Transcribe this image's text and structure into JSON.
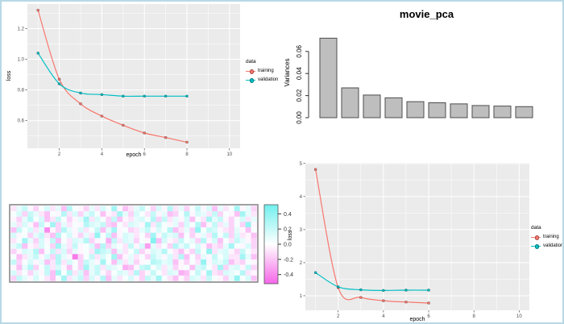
{
  "window": {
    "background": "#ffffff",
    "border_color": "#b7d9e6"
  },
  "colors": {
    "training": "#F8766D",
    "validation": "#00BFC4",
    "panel_bg": "#EBEBEB",
    "grid": "#FFFFFF",
    "tick": "#333333",
    "tick_text": "#4D4D4D",
    "bar_fill": "#BEBEBE",
    "bar_border": "#4D4D4D",
    "heat_positive": "#70F0EE",
    "heat_negative": "#F566E8",
    "heatmap_border": "#808080"
  },
  "legend": {
    "title": "data",
    "items": [
      {
        "label": "training",
        "color_key": "training"
      },
      {
        "label": "validation",
        "color_key": "validation"
      }
    ]
  },
  "chart_data": [
    {
      "id": "loss_top_left",
      "type": "line",
      "xlabel": "epoch",
      "ylabel": "loss",
      "x": [
        1,
        2,
        3,
        4,
        5,
        6,
        7,
        8
      ],
      "series": [
        {
          "name": "training",
          "color_key": "training",
          "values": [
            1.32,
            0.87,
            0.71,
            0.63,
            0.57,
            0.52,
            0.49,
            0.46
          ]
        },
        {
          "name": "validation",
          "color_key": "validation",
          "values": [
            1.04,
            0.84,
            0.78,
            0.77,
            0.76,
            0.76,
            0.76,
            0.76
          ]
        }
      ],
      "xticks": [
        2,
        4,
        6,
        8,
        10
      ],
      "xtick_labels": [
        "2",
        "4",
        "6",
        "8",
        "10"
      ],
      "yticks": [
        0.6,
        0.8,
        1.0,
        1.2
      ],
      "ytick_labels": [
        "0.6",
        "0.8",
        "1.0",
        "1.2"
      ],
      "xlim": [
        0.5,
        10.5
      ],
      "ylim": [
        0.42,
        1.36
      ],
      "grid": true,
      "legend_position": "right"
    },
    {
      "id": "movie_pca",
      "type": "bar",
      "title": "movie_pca",
      "ylabel": "Variances",
      "xlabel": "",
      "values": [
        0.072,
        0.027,
        0.0205,
        0.018,
        0.0145,
        0.0135,
        0.0125,
        0.011,
        0.0105,
        0.01
      ],
      "yticks": [
        0,
        0.02,
        0.04,
        0.06
      ],
      "ytick_labels": [
        "0.00",
        "0.02",
        "0.04",
        "0.06"
      ],
      "ylim": [
        0,
        0.073
      ],
      "grid": false
    },
    {
      "id": "weights_heatmap",
      "type": "heatmap",
      "rows": 14,
      "cols": 44,
      "value_range": [
        -0.52,
        0.52
      ],
      "colorbar_ticks": [
        0.4,
        0.2,
        0.0,
        -0.2,
        -0.4
      ],
      "colorbar_tick_labels": [
        "0.4",
        "0.2",
        "0.0",
        "-0.2",
        "-0.4"
      ],
      "encoding": "hex char 0-f per cell; value = (hex - 7.5) / 7.5 * 0.45",
      "encoded_rows": [
        "69b758a694c87596a8d7469b85a7c6958b7a4968d795",
        "8a5b96487c6a59b8476d95a86b79458c7a96b5874d96",
        "759c8a46b8579d6a85b4769a8c5b697a486d9b758a69",
        "96a74b8d59687ca9b5486a97d6b8795a8c47b69585e7",
        "4b8a69175c97a68b49d78569b7a8c4695e8ba7659748",
        "a7859b64c8a7596e8b47a9685d7b9a485796c8b5a674",
        "68d95a7b486a9c5783b6a9587f4a76b895c7a486b975",
        "9b476a85d96b78a4c5986b7a29685c9b8a74659d87a5",
        "57a9c48b6a59786dba4968b57a9c86475b8e69a75b86",
        "8469b7a5c97058b6a8d479685b97a6c48597b8a66d94",
        "b58a7946c6a85b97d84a69578cb9a47586e7a9b46587",
        "749c58b6a7485d9b6a98347bc8a695784ab86d59a7b5",
        "a68597b4d8c6a49b758a96c57b86a9348b7d65a98c67",
        "5b97a8648d69b5a7c4968a75b9d86475a96b8759e8a4"
      ]
    },
    {
      "id": "loss_bottom_right",
      "type": "line",
      "xlabel": "epoch",
      "ylabel": "loss",
      "x": [
        1,
        2,
        3,
        4,
        5,
        6
      ],
      "series": [
        {
          "name": "training",
          "color_key": "training",
          "values": [
            4.82,
            1.25,
            0.95,
            0.85,
            0.81,
            0.78
          ]
        },
        {
          "name": "validation",
          "color_key": "validation",
          "values": [
            1.7,
            1.27,
            1.18,
            1.16,
            1.17,
            1.17
          ]
        }
      ],
      "xticks": [
        2,
        4,
        6,
        8,
        10
      ],
      "xtick_labels": [
        "2",
        "4",
        "6",
        "8",
        "10"
      ],
      "yticks": [
        1,
        2,
        3,
        4,
        5
      ],
      "ytick_labels": [
        "1",
        "2",
        "3",
        "4",
        "5"
      ],
      "xlim": [
        0.55,
        10.45
      ],
      "ylim": [
        0.56,
        5.02
      ],
      "grid": true,
      "legend_position": "right"
    }
  ]
}
